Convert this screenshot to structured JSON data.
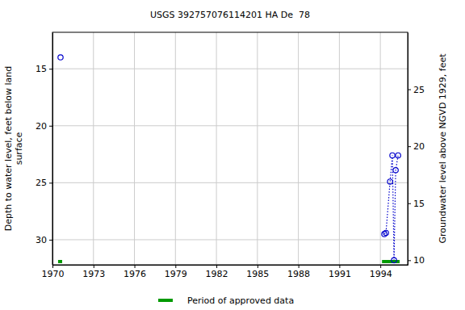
{
  "chart_data": {
    "type": "line",
    "title": "USGS 392757076114201 HA De  78",
    "y_label": [
      "Depth to water level, feet below land",
      "surface"
    ],
    "y2_label": "Groundwater level above NGVD 1929, feet",
    "xlim": [
      1970,
      1996
    ],
    "xticks": [
      1970,
      1973,
      1976,
      1979,
      1982,
      1985,
      1988,
      1991,
      1994
    ],
    "ylim": [
      32.2,
      11.8
    ],
    "yticks": [
      15,
      20,
      25,
      30
    ],
    "y2lim": [
      9.6,
      30.0
    ],
    "y2ticks": [
      10,
      15,
      20,
      25
    ],
    "grid": true,
    "series": [
      {
        "x": [
          1970.59
        ],
        "values": [
          14.0
        ],
        "color": "#0000cc",
        "marker": "circle",
        "line_style": "none"
      },
      {
        "x": [
          1994.29,
          1994.41,
          1994.71,
          1994.88,
          1995.0,
          1995.12,
          1995.3
        ],
        "values": [
          29.5,
          29.4,
          24.9,
          22.6,
          31.8,
          23.9,
          22.6
        ],
        "color": "#0000cc",
        "marker": "circle",
        "line_style": "dotted"
      }
    ],
    "approved_periods": {
      "name": "Period of approved data",
      "color": "#009900",
      "ranges": [
        [
          1970.41,
          1970.71
        ],
        [
          1994.12,
          1995.41
        ]
      ]
    }
  }
}
